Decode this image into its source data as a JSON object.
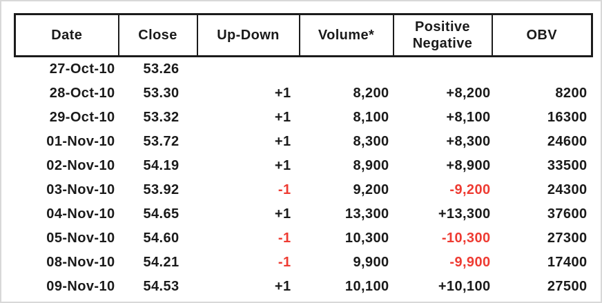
{
  "colors": {
    "text": "#1a1a1a",
    "negative": "#ee3b32",
    "header_border": "#1b1b1b",
    "frame_border": "#d8d8d8",
    "background": "#ffffff"
  },
  "chart_data": {
    "type": "table",
    "title": "",
    "column_keys": [
      "date",
      "close",
      "updown",
      "volume",
      "posneg",
      "obv"
    ],
    "columns": [
      "Date",
      "Close",
      "Up-Down",
      "Volume*",
      "Positive Negative",
      "OBV"
    ],
    "rows": [
      [
        "27-Oct-10",
        "53.26",
        "",
        "",
        "",
        ""
      ],
      [
        "28-Oct-10",
        "53.30",
        "+1",
        "8,200",
        "+8,200",
        "8200"
      ],
      [
        "29-Oct-10",
        "53.32",
        "+1",
        "8,100",
        "+8,100",
        "16300"
      ],
      [
        "01-Nov-10",
        "53.72",
        "+1",
        "8,300",
        "+8,300",
        "24600"
      ],
      [
        "02-Nov-10",
        "54.19",
        "+1",
        "8,900",
        "+8,900",
        "33500"
      ],
      [
        "03-Nov-10",
        "53.92",
        "-1",
        "9,200",
        "-9,200",
        "24300"
      ],
      [
        "04-Nov-10",
        "54.65",
        "+1",
        "13,300",
        "+13,300",
        "37600"
      ],
      [
        "05-Nov-10",
        "54.60",
        "-1",
        "10,300",
        "-10,300",
        "27300"
      ],
      [
        "08-Nov-10",
        "54.21",
        "-1",
        "9,900",
        "-9,900",
        "17400"
      ],
      [
        "09-Nov-10",
        "54.53",
        "+1",
        "10,100",
        "+10,100",
        "27500"
      ]
    ]
  }
}
